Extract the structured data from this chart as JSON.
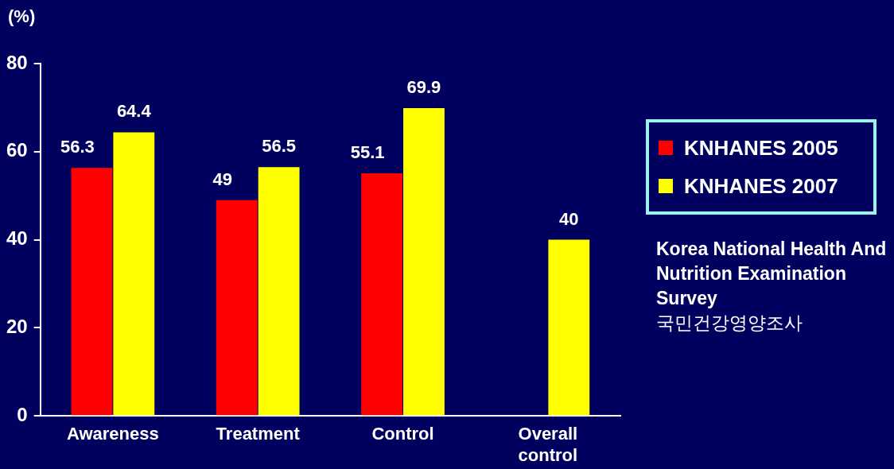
{
  "chart_data": {
    "type": "bar",
    "ylabel": "(%)",
    "categories": [
      "Awareness",
      "Treatment",
      "Control",
      "Overall control"
    ],
    "series": [
      {
        "name": "KNHANES 2005",
        "color": "#ff0000",
        "values": [
          56.3,
          49,
          55.1,
          null
        ]
      },
      {
        "name": "KNHANES 2007",
        "color": "#ffff00",
        "values": [
          64.4,
          56.5,
          69.9,
          40
        ]
      }
    ],
    "ylim": [
      0,
      80
    ],
    "yticks": [
      0,
      20,
      40,
      60,
      80
    ],
    "data_labels": true,
    "legend": "right",
    "annotations": [
      "Korea National Health And Nutrition Examination Survey",
      "국민건강영양조사"
    ]
  }
}
